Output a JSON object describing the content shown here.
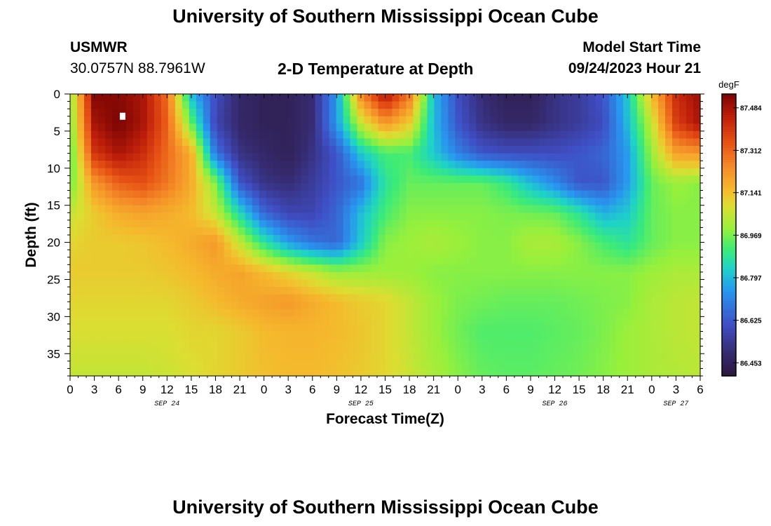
{
  "page": {
    "title": "University of Southern Mississippi Ocean Cube",
    "title_bottom": "University of Southern Mississippi Ocean Cube",
    "station_name": "USMWR",
    "station_coords": "30.0757N  88.7961W",
    "subtitle": "2-D Temperature at Depth",
    "model_start_label": "Model Start Time",
    "model_start_value": "09/24/2023 Hour 21"
  },
  "chart_data": {
    "type": "heatmap",
    "title": "2-D Temperature at Depth",
    "xlabel": "Forecast Time(Z)",
    "ylabel": "Depth (ft)",
    "x_unit": "hours since 09/24 00Z",
    "x_range": [
      0,
      78
    ],
    "x_ticks": [
      0,
      3,
      6,
      9,
      12,
      15,
      18,
      21,
      24,
      27,
      30,
      33,
      36,
      39,
      42,
      45,
      48,
      51,
      54,
      57,
      60,
      63,
      66,
      69,
      72,
      75,
      78
    ],
    "x_tick_labels": [
      "0",
      "3",
      "6",
      "9",
      "12",
      "15",
      "18",
      "21",
      "0",
      "3",
      "6",
      "9",
      "12",
      "15",
      "18",
      "21",
      "0",
      "3",
      "6",
      "9",
      "12",
      "15",
      "18",
      "21",
      "0",
      "3",
      "6"
    ],
    "date_labels": [
      {
        "x": 12,
        "text": "SEP 24"
      },
      {
        "x": 36,
        "text": "SEP 25"
      },
      {
        "x": 60,
        "text": "SEP 26"
      },
      {
        "x": 75,
        "text": "SEP 27"
      }
    ],
    "y_range": [
      0,
      38
    ],
    "y_inverted": true,
    "y_ticks": [
      0,
      5,
      10,
      15,
      20,
      25,
      30,
      35
    ],
    "y_tick_labels": [
      "0",
      "5",
      "10",
      "15",
      "20",
      "25",
      "30",
      "35"
    ],
    "colorbar": {
      "unit": "degF",
      "min": 86.4,
      "max": 87.54,
      "ticks": [
        87.484,
        87.312,
        87.141,
        86.969,
        86.797,
        86.625,
        86.453
      ],
      "tick_labels": [
        "87.484",
        "87.312",
        "87.141",
        "86.969",
        "86.797",
        "86.625",
        "86.453"
      ]
    },
    "grid_times": [
      0,
      3,
      6,
      9,
      12,
      15,
      18,
      21,
      24,
      27,
      30,
      33,
      36,
      39,
      42,
      45,
      48,
      51,
      54,
      57,
      60,
      63,
      66,
      69,
      72,
      75,
      78
    ],
    "grid_depths": [
      0,
      4,
      8,
      12,
      16,
      20,
      24,
      28,
      32,
      38
    ],
    "values": [
      [
        86.98,
        87.53,
        87.52,
        87.48,
        87.3,
        86.8,
        86.6,
        86.48,
        86.45,
        86.45,
        86.5,
        86.75,
        87.25,
        87.48,
        87.28,
        86.8,
        86.6,
        86.5,
        86.45,
        86.45,
        86.52,
        86.55,
        86.62,
        86.82,
        87.15,
        87.42,
        87.5
      ],
      [
        86.96,
        87.48,
        87.54,
        87.48,
        87.32,
        86.95,
        86.58,
        86.48,
        86.45,
        86.45,
        86.5,
        86.75,
        87.05,
        87.22,
        87.12,
        86.8,
        86.62,
        86.52,
        86.48,
        86.48,
        86.52,
        86.55,
        86.6,
        86.8,
        87.05,
        87.38,
        87.48
      ],
      [
        86.92,
        87.4,
        87.48,
        87.42,
        87.3,
        87.18,
        86.68,
        86.52,
        86.48,
        86.45,
        86.52,
        86.62,
        86.82,
        86.92,
        86.92,
        86.82,
        86.7,
        86.62,
        86.6,
        86.6,
        86.6,
        86.62,
        86.65,
        86.75,
        87.0,
        87.2,
        87.22
      ],
      [
        86.95,
        87.22,
        87.32,
        87.35,
        87.28,
        87.18,
        86.98,
        86.62,
        86.52,
        86.5,
        86.55,
        86.62,
        86.68,
        86.88,
        86.95,
        86.95,
        86.95,
        86.95,
        86.9,
        86.8,
        86.72,
        86.62,
        86.62,
        86.75,
        86.95,
        87.0,
        86.98
      ],
      [
        87.05,
        87.12,
        87.18,
        87.2,
        87.18,
        87.15,
        87.05,
        86.85,
        86.65,
        86.58,
        86.58,
        86.65,
        86.8,
        86.92,
        86.98,
        86.98,
        86.98,
        86.98,
        86.97,
        86.96,
        86.95,
        86.88,
        86.78,
        86.82,
        86.95,
        86.98,
        86.98
      ],
      [
        87.1,
        87.12,
        87.12,
        87.13,
        87.15,
        87.18,
        87.22,
        87.05,
        86.88,
        86.75,
        86.68,
        86.65,
        86.82,
        86.98,
        87.0,
        87.02,
        87.0,
        86.98,
        86.98,
        87.02,
        87.02,
        86.98,
        86.92,
        86.88,
        86.95,
        86.98,
        86.98
      ],
      [
        87.12,
        87.12,
        87.12,
        87.12,
        87.13,
        87.15,
        87.18,
        87.2,
        87.15,
        87.1,
        87.05,
        87.0,
        87.0,
        87.0,
        87.0,
        86.98,
        86.98,
        86.98,
        86.98,
        86.98,
        86.98,
        86.98,
        86.98,
        86.98,
        87.0,
        87.02,
        87.02
      ],
      [
        87.1,
        87.1,
        87.1,
        87.1,
        87.1,
        87.12,
        87.15,
        87.18,
        87.2,
        87.22,
        87.18,
        87.15,
        87.12,
        87.1,
        87.05,
        87.0,
        86.97,
        86.96,
        86.95,
        86.95,
        86.95,
        86.96,
        86.97,
        86.98,
        87.02,
        87.04,
        87.05
      ],
      [
        87.08,
        87.08,
        87.08,
        87.08,
        87.08,
        87.1,
        87.1,
        87.12,
        87.15,
        87.16,
        87.16,
        87.15,
        87.13,
        87.1,
        87.05,
        87.0,
        86.96,
        86.93,
        86.93,
        86.93,
        86.94,
        86.95,
        86.97,
        87.0,
        87.02,
        87.04,
        87.05
      ],
      [
        87.05,
        87.05,
        87.05,
        87.05,
        87.06,
        87.08,
        87.1,
        87.12,
        87.14,
        87.15,
        87.15,
        87.14,
        87.12,
        87.1,
        87.06,
        87.02,
        86.98,
        86.95,
        86.94,
        86.94,
        86.95,
        86.96,
        86.98,
        87.0,
        87.02,
        87.03,
        87.04
      ]
    ],
    "marker": {
      "x": 6.5,
      "y": 3
    }
  }
}
